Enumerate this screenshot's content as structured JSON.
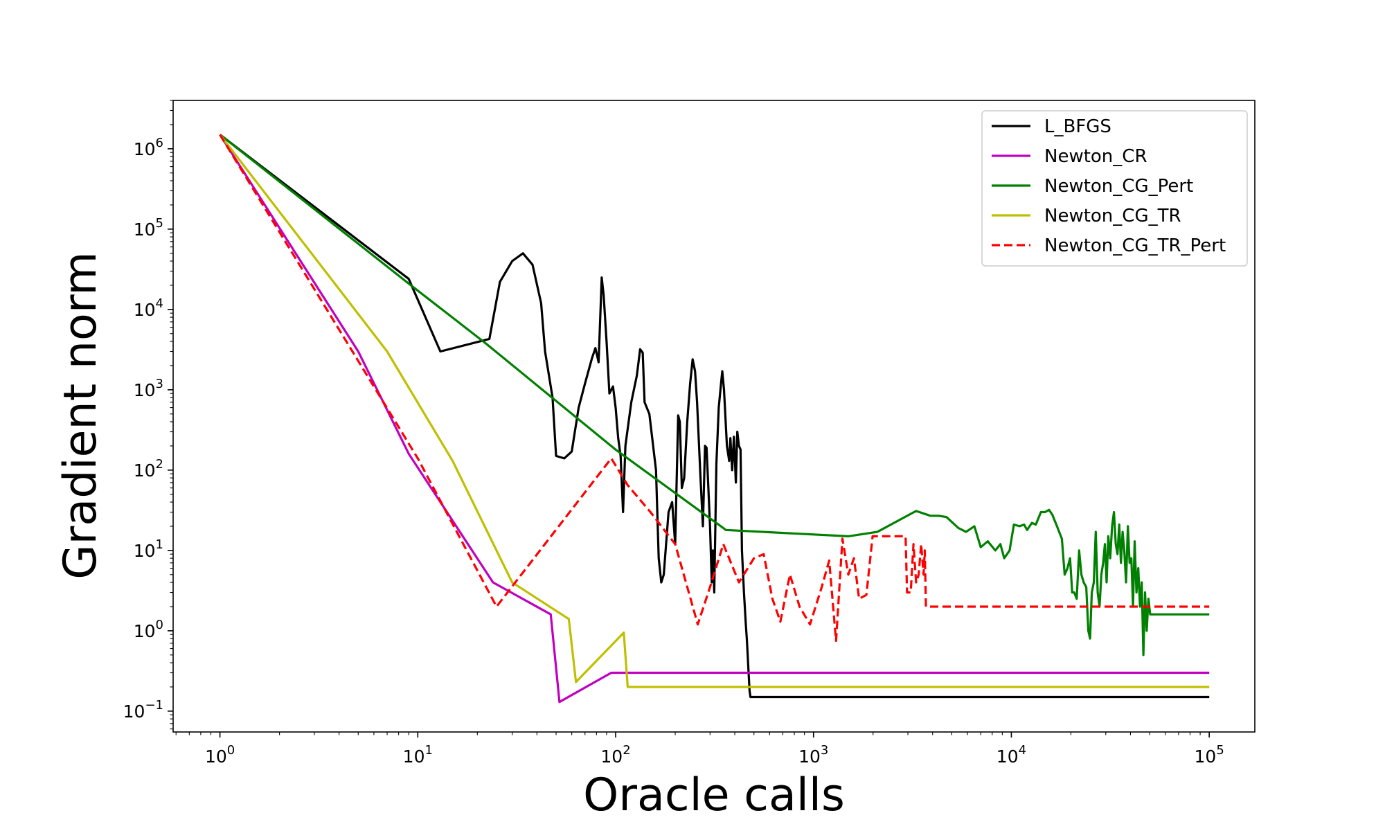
{
  "chart_data": {
    "type": "line",
    "title": "",
    "xlabel": "Oracle calls",
    "ylabel": "Gradient norm",
    "xscale": "log",
    "yscale": "log",
    "xlim": [
      0.58,
      170000
    ],
    "ylim": [
      0.055,
      4000000
    ],
    "grid": false,
    "legend_position": "top-right",
    "x_ticks": [
      {
        "value": 1,
        "base": "10",
        "exp": "0"
      },
      {
        "value": 10,
        "base": "10",
        "exp": "1"
      },
      {
        "value": 100,
        "base": "10",
        "exp": "2"
      },
      {
        "value": 1000,
        "base": "10",
        "exp": "3"
      },
      {
        "value": 10000,
        "base": "10",
        "exp": "4"
      },
      {
        "value": 100000,
        "base": "10",
        "exp": "5"
      }
    ],
    "y_ticks": [
      {
        "value": 0.1,
        "base": "10",
        "exp": "−1"
      },
      {
        "value": 1,
        "base": "10",
        "exp": "0"
      },
      {
        "value": 10,
        "base": "10",
        "exp": "1"
      },
      {
        "value": 100,
        "base": "10",
        "exp": "2"
      },
      {
        "value": 1000,
        "base": "10",
        "exp": "3"
      },
      {
        "value": 10000,
        "base": "10",
        "exp": "4"
      },
      {
        "value": 100000,
        "base": "10",
        "exp": "5"
      },
      {
        "value": 1000000,
        "base": "10",
        "exp": "6"
      }
    ],
    "series": [
      {
        "name": "L_BFGS",
        "color": "#000000",
        "dash": "solid",
        "points": [
          [
            1,
            1500000
          ],
          [
            9,
            24000
          ],
          [
            13,
            3000
          ],
          [
            23,
            4300
          ],
          [
            26,
            22000
          ],
          [
            30,
            40000
          ],
          [
            34,
            50000
          ],
          [
            38,
            36000
          ],
          [
            42,
            12000
          ],
          [
            44,
            3000
          ],
          [
            48,
            800
          ],
          [
            50,
            150
          ],
          [
            55,
            140
          ],
          [
            60,
            170
          ],
          [
            65,
            600
          ],
          [
            70,
            1200
          ],
          [
            76,
            2500
          ],
          [
            79,
            3300
          ],
          [
            82,
            2200
          ],
          [
            85,
            25000
          ],
          [
            87,
            15000
          ],
          [
            90,
            4000
          ],
          [
            93,
            900
          ],
          [
            97,
            1100
          ],
          [
            100,
            600
          ],
          [
            103,
            250
          ],
          [
            106,
            150
          ],
          [
            109,
            30
          ],
          [
            112,
            200
          ],
          [
            120,
            700
          ],
          [
            128,
            1500
          ],
          [
            133,
            3200
          ],
          [
            137,
            2900
          ],
          [
            140,
            700
          ],
          [
            148,
            500
          ],
          [
            160,
            100
          ],
          [
            165,
            8
          ],
          [
            170,
            4
          ],
          [
            175,
            5
          ],
          [
            185,
            30
          ],
          [
            193,
            40
          ],
          [
            200,
            12
          ],
          [
            207,
            480
          ],
          [
            211,
            400
          ],
          [
            216,
            60
          ],
          [
            222,
            80
          ],
          [
            230,
            400
          ],
          [
            238,
            1200
          ],
          [
            245,
            2400
          ],
          [
            252,
            1700
          ],
          [
            258,
            700
          ],
          [
            268,
            90
          ],
          [
            276,
            20
          ],
          [
            283,
            200
          ],
          [
            288,
            190
          ],
          [
            295,
            50
          ],
          [
            300,
            20
          ],
          [
            306,
            4
          ],
          [
            310,
            10
          ],
          [
            315,
            3
          ],
          [
            323,
            120
          ],
          [
            332,
            600
          ],
          [
            341,
            1200
          ],
          [
            346,
            1700
          ],
          [
            353,
            1000
          ],
          [
            365,
            200
          ],
          [
            375,
            130
          ],
          [
            380,
            250
          ],
          [
            388,
            100
          ],
          [
            396,
            260
          ],
          [
            401,
            130
          ],
          [
            405,
            70
          ],
          [
            412,
            300
          ],
          [
            420,
            200
          ],
          [
            428,
            180
          ],
          [
            435,
            10
          ],
          [
            445,
            3
          ],
          [
            455,
            1.2
          ],
          [
            460,
            0.8
          ],
          [
            465,
            0.5
          ],
          [
            470,
            0.3
          ],
          [
            475,
            0.18
          ],
          [
            480,
            0.15
          ],
          [
            100000,
            0.15
          ]
        ]
      },
      {
        "name": "Newton_CR",
        "color": "#bf00bf",
        "dash": "solid",
        "points": [
          [
            1,
            1500000
          ],
          [
            5,
            3000
          ],
          [
            9,
            160
          ],
          [
            24,
            4
          ],
          [
            47,
            1.6
          ],
          [
            52,
            0.13
          ],
          [
            95,
            0.3
          ],
          [
            100000,
            0.3
          ]
        ]
      },
      {
        "name": "Newton_CG_Pert",
        "color": "#008000",
        "dash": "solid",
        "points": [
          [
            1,
            1500000
          ],
          [
            9,
            21000
          ],
          [
            22,
            3800
          ],
          [
            100,
            180
          ],
          [
            350,
            19
          ],
          [
            360,
            18
          ],
          [
            1500,
            15
          ],
          [
            2100,
            17
          ],
          [
            3300,
            31
          ],
          [
            3900,
            27
          ],
          [
            4300,
            27
          ],
          [
            4700,
            26
          ],
          [
            5400,
            19
          ],
          [
            5900,
            17
          ],
          [
            6500,
            20
          ],
          [
            7000,
            11
          ],
          [
            7600,
            13
          ],
          [
            8300,
            10
          ],
          [
            8800,
            12
          ],
          [
            9200,
            8
          ],
          [
            9800,
            10
          ],
          [
            10300,
            21
          ],
          [
            11000,
            20
          ],
          [
            11600,
            21
          ],
          [
            12000,
            18
          ],
          [
            12700,
            22
          ],
          [
            13300,
            21
          ],
          [
            14100,
            30
          ],
          [
            14800,
            30
          ],
          [
            15500,
            32
          ],
          [
            16100,
            28
          ],
          [
            17000,
            20
          ],
          [
            18000,
            14
          ],
          [
            18600,
            5
          ],
          [
            19200,
            6
          ],
          [
            19800,
            8
          ],
          [
            20300,
            3
          ],
          [
            20800,
            3
          ],
          [
            21400,
            2.5
          ],
          [
            22000,
            10
          ],
          [
            22600,
            5
          ],
          [
            23200,
            4
          ],
          [
            23900,
            3.5
          ],
          [
            24500,
            1
          ],
          [
            25000,
            0.8
          ],
          [
            25500,
            3
          ],
          [
            26100,
            4
          ],
          [
            26700,
            17
          ],
          [
            27300,
            3
          ],
          [
            27900,
            2
          ],
          [
            28500,
            5
          ],
          [
            29100,
            7
          ],
          [
            29700,
            12
          ],
          [
            30300,
            4
          ],
          [
            30900,
            15
          ],
          [
            31600,
            8
          ],
          [
            32300,
            20
          ],
          [
            33000,
            30
          ],
          [
            33700,
            12
          ],
          [
            34400,
            9
          ],
          [
            35100,
            21
          ],
          [
            35800,
            7
          ],
          [
            36500,
            17
          ],
          [
            37200,
            10
          ],
          [
            38000,
            4
          ],
          [
            38800,
            20
          ],
          [
            39600,
            7
          ],
          [
            40400,
            8
          ],
          [
            41200,
            2
          ],
          [
            42000,
            13
          ],
          [
            42900,
            3
          ],
          [
            43800,
            6
          ],
          [
            44700,
            2
          ],
          [
            45600,
            4
          ],
          [
            46500,
            0.5
          ],
          [
            47400,
            3
          ],
          [
            48300,
            1
          ],
          [
            49300,
            2.5
          ],
          [
            50300,
            1.6
          ],
          [
            100000,
            1.6
          ]
        ]
      },
      {
        "name": "Newton_CG_TR",
        "color": "#bfbf00",
        "dash": "solid",
        "points": [
          [
            1,
            1500000
          ],
          [
            7,
            3000
          ],
          [
            15,
            130
          ],
          [
            30,
            4
          ],
          [
            58,
            1.4
          ],
          [
            63,
            0.23
          ],
          [
            110,
            0.95
          ],
          [
            115,
            0.2
          ],
          [
            100000,
            0.2
          ]
        ]
      },
      {
        "name": "Newton_CG_TR_Pert",
        "color": "#ff0000",
        "dash": "dashed",
        "points": [
          [
            1,
            1500000
          ],
          [
            10,
            140
          ],
          [
            25,
            2
          ],
          [
            95,
            140
          ],
          [
            115,
            65
          ],
          [
            150,
            30
          ],
          [
            200,
            12
          ],
          [
            260,
            1.2
          ],
          [
            300,
            3.5
          ],
          [
            350,
            12
          ],
          [
            420,
            4
          ],
          [
            500,
            8
          ],
          [
            560,
            9
          ],
          [
            620,
            2.5
          ],
          [
            680,
            1.3
          ],
          [
            760,
            5
          ],
          [
            850,
            2
          ],
          [
            960,
            1.2
          ],
          [
            1100,
            3.5
          ],
          [
            1200,
            7.5
          ],
          [
            1300,
            0.75
          ],
          [
            1400,
            14
          ],
          [
            1500,
            5
          ],
          [
            1600,
            8
          ],
          [
            1700,
            2.5
          ],
          [
            1850,
            2.8
          ],
          [
            1990,
            15
          ],
          [
            2500,
            15
          ],
          [
            2920,
            15
          ],
          [
            2970,
            3
          ],
          [
            3100,
            3
          ],
          [
            3200,
            12
          ],
          [
            3300,
            4
          ],
          [
            3400,
            5
          ],
          [
            3500,
            12
          ],
          [
            3600,
            5
          ],
          [
            3650,
            10
          ],
          [
            3700,
            2
          ],
          [
            100000,
            2
          ]
        ]
      }
    ]
  }
}
